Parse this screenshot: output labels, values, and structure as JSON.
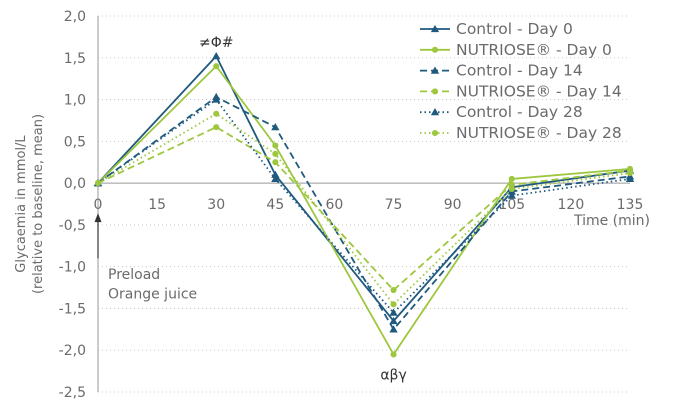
{
  "chart_data": {
    "type": "line",
    "x": [
      0,
      30,
      45,
      75,
      105,
      135
    ],
    "xticks": [
      0,
      15,
      30,
      45,
      60,
      75,
      90,
      105,
      120,
      135
    ],
    "xlabels": [
      "0",
      "15",
      "30",
      "45",
      "60",
      "75",
      "90",
      "105",
      "120",
      "135"
    ],
    "yticks": [
      2.0,
      1.5,
      1.0,
      0.5,
      0.0,
      -0.5,
      -1.0,
      -1.5,
      -2.0,
      -2.5
    ],
    "ylabels": [
      "2,0",
      "1,5",
      "1,0",
      "0,5",
      "0,0",
      "-0,5",
      "-1,0",
      "-1,5",
      "-2,0",
      "-2,5"
    ],
    "xlim": [
      0,
      135
    ],
    "ylim": [
      -2.5,
      2.0
    ],
    "xlabel": "Time (min)",
    "ylabel_line1": "Glycaemia in mmol/L",
    "ylabel_line2": "(relative to baseline, mean)",
    "grid": "horizontal",
    "legend_position": "top-right",
    "colors": {
      "control": "#1f5a7e",
      "nutriose": "#9dc73f"
    },
    "series": [
      {
        "name": "Control - Day 0",
        "color": "#1f5a7e",
        "dash": "solid",
        "marker": "triangle",
        "values": [
          0.0,
          1.52,
          0.1,
          -1.65,
          -0.05,
          0.15
        ]
      },
      {
        "name": "NUTRIOSE® - Day 0",
        "color": "#9dc73f",
        "dash": "solid",
        "marker": "circle",
        "values": [
          0.0,
          1.4,
          0.45,
          -2.05,
          0.05,
          0.17
        ]
      },
      {
        "name": "Control - Day 14",
        "color": "#1f5a7e",
        "dash": "dashed",
        "marker": "triangle",
        "values": [
          0.0,
          1.03,
          0.67,
          -1.75,
          -0.1,
          0.08
        ]
      },
      {
        "name": "NUTRIOSE® - Day 14",
        "color": "#9dc73f",
        "dash": "dashed",
        "marker": "circle",
        "values": [
          0.0,
          0.67,
          0.25,
          -1.28,
          -0.02,
          0.15
        ]
      },
      {
        "name": "Control - Day 28",
        "color": "#1f5a7e",
        "dash": "dotted",
        "marker": "triangle",
        "values": [
          0.0,
          1.0,
          0.05,
          -1.55,
          -0.15,
          0.05
        ]
      },
      {
        "name": "NUTRIOSE® - Day 28",
        "color": "#9dc73f",
        "dash": "dotted",
        "marker": "circle",
        "values": [
          0.0,
          0.83,
          0.35,
          -1.45,
          -0.07,
          0.12
        ]
      }
    ],
    "annotations": {
      "peak_label": "≠Φ#",
      "trough_label": "αβγ",
      "preload_line1": "Preload",
      "preload_line2": "Orange juice"
    }
  }
}
